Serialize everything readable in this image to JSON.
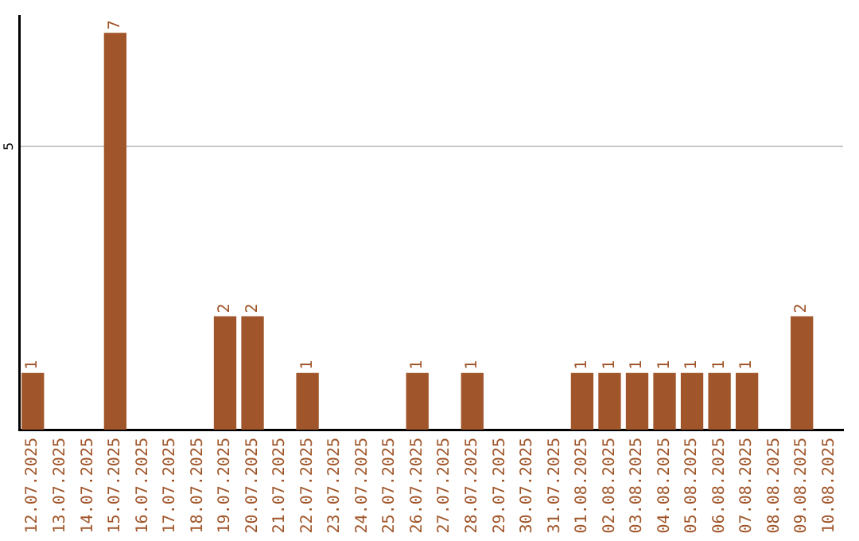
{
  "chart_data": {
    "type": "bar",
    "categories": [
      "12.07.2025",
      "13.07.2025",
      "14.07.2025",
      "15.07.2025",
      "16.07.2025",
      "17.07.2025",
      "18.07.2025",
      "19.07.2025",
      "20.07.2025",
      "21.07.2025",
      "22.07.2025",
      "23.07.2025",
      "24.07.2025",
      "25.07.2025",
      "26.07.2025",
      "27.07.2025",
      "28.07.2025",
      "29.07.2025",
      "30.07.2025",
      "31.07.2025",
      "01.08.2025",
      "02.08.2025",
      "03.08.2025",
      "04.08.2025",
      "05.08.2025",
      "06.08.2025",
      "07.08.2025",
      "08.08.2025",
      "09.08.2025",
      "10.08.2025"
    ],
    "values": [
      1,
      0,
      0,
      7,
      0,
      0,
      0,
      2,
      2,
      0,
      1,
      0,
      0,
      0,
      1,
      0,
      1,
      0,
      0,
      0,
      1,
      1,
      1,
      1,
      1,
      1,
      1,
      0,
      2,
      0
    ],
    "value_labels": [
      "1",
      null,
      null,
      "7",
      null,
      null,
      null,
      "2",
      "2",
      null,
      "1",
      null,
      null,
      null,
      "1",
      null,
      "1",
      null,
      null,
      null,
      "1",
      "1",
      "1",
      "1",
      "1",
      "1",
      "1",
      null,
      "2",
      null
    ],
    "color": "#a0562a",
    "ylim": [
      0,
      7.3
    ],
    "yticks": [
      5
    ],
    "grid": "y"
  }
}
